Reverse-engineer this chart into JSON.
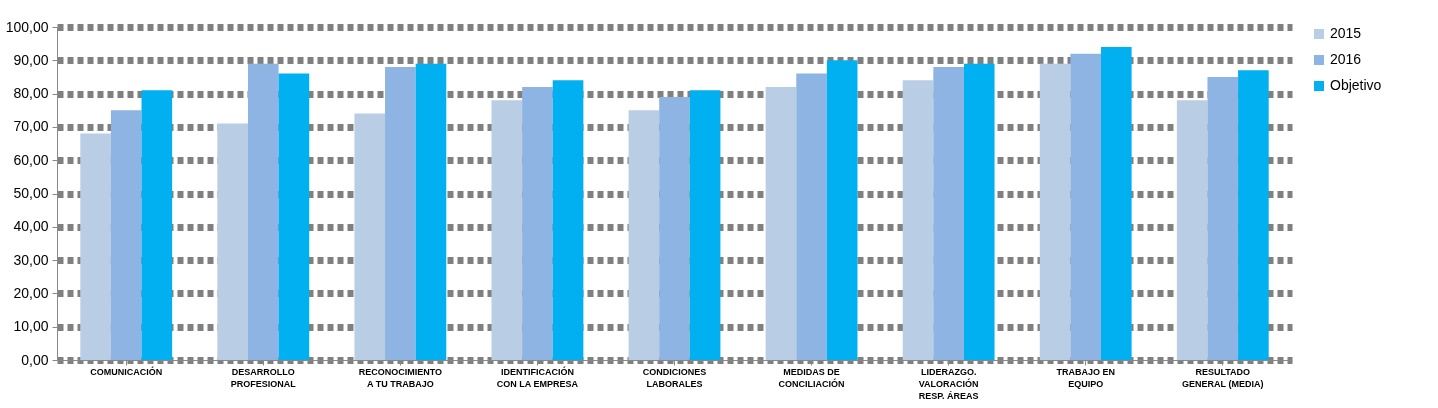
{
  "chart_data": {
    "type": "bar",
    "categories": [
      "COMUNICACIÓN",
      "DESARROLLO PROFESIONAL",
      "RECONOCIMIENTO A TU TRABAJO",
      "IDENTIFICACIÓN CON LA EMPRESA",
      "CONDICIONES LABORALES",
      "MEDIDAS DE CONCILIACIÓN",
      "LIDERAZGO. VALORACIÓN RESP. ÁREAS",
      "TRABAJO EN EQUIPO",
      "RESULTADO GENERAL (MEDIA)"
    ],
    "series": [
      {
        "name": "2015",
        "color": "#b9cde5",
        "values": [
          68,
          71,
          74,
          78,
          75,
          82,
          84,
          89,
          78
        ]
      },
      {
        "name": "2016",
        "color": "#8eb4e3",
        "values": [
          75,
          89,
          88,
          82,
          79,
          86,
          88,
          92,
          85
        ]
      },
      {
        "name": "Objetivo",
        "color": "#00b0f0",
        "values": [
          81,
          86,
          89,
          84,
          81,
          90,
          89,
          94,
          87
        ]
      }
    ],
    "ylim": [
      0,
      100
    ],
    "yticks": [
      {
        "value": 0,
        "label": "0,00"
      },
      {
        "value": 10,
        "label": "10,00"
      },
      {
        "value": 20,
        "label": "20,00"
      },
      {
        "value": 30,
        "label": "30,00"
      },
      {
        "value": 40,
        "label": "40,00"
      },
      {
        "value": 50,
        "label": "50,00"
      },
      {
        "value": 60,
        "label": "60,00"
      },
      {
        "value": 70,
        "label": "70,00"
      },
      {
        "value": 80,
        "label": "80,00"
      },
      {
        "value": 90,
        "label": "90,00"
      },
      {
        "value": 100,
        "label": "100,00"
      }
    ],
    "grid": true,
    "legend": "right"
  }
}
